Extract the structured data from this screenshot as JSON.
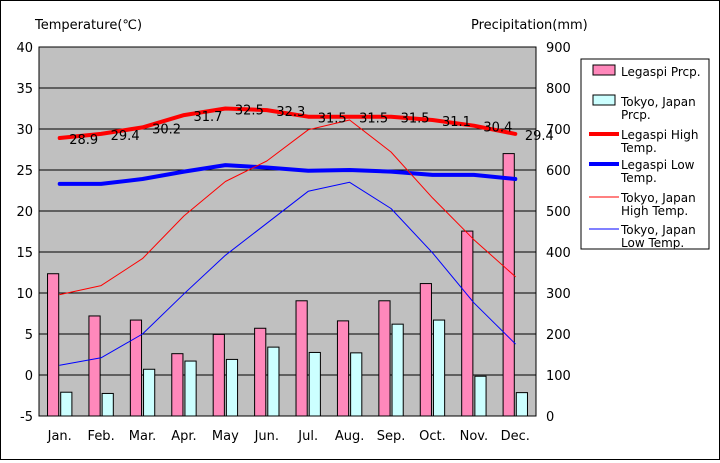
{
  "chart_data": {
    "type": "bar+line",
    "title_left": "Temperature(℃)",
    "title_right": "Precipitation(mm)",
    "categories": [
      "Jan.",
      "Feb.",
      "Mar.",
      "Apr.",
      "May",
      "Jun.",
      "Jul.",
      "Aug.",
      "Sep.",
      "Oct.",
      "Nov.",
      "Dec."
    ],
    "y_left": {
      "min": -5,
      "max": 40,
      "ticks": [
        "-5",
        "0",
        "5",
        "10",
        "15",
        "20",
        "25",
        "30",
        "35",
        "40"
      ]
    },
    "y_right": {
      "min": 0,
      "max": 900,
      "ticks": [
        "0",
        "100",
        "200",
        "300",
        "400",
        "500",
        "600",
        "700",
        "800",
        "900"
      ]
    },
    "grid": true,
    "legend_position": "right",
    "bars": [
      {
        "name": "Legaspi Prcp.",
        "color": "#ff88bb",
        "axis": "right",
        "values": [
          347,
          244,
          234,
          152,
          199,
          214,
          281,
          232,
          281,
          323,
          451,
          640
        ]
      },
      {
        "name": "Tokyo, Japan Prcp.",
        "color": "#ccffff",
        "axis": "right",
        "values": [
          58,
          55,
          114,
          134,
          138,
          168,
          155,
          154,
          224,
          234,
          97,
          57
        ]
      }
    ],
    "lines": [
      {
        "name": "Legaspi High Temp.",
        "color": "#ff0000",
        "width": 4,
        "axis": "left",
        "values": [
          28.9,
          29.4,
          30.2,
          31.7,
          32.5,
          32.3,
          31.5,
          31.5,
          31.5,
          31.1,
          30.4,
          29.4
        ],
        "data_labels": [
          "28.9",
          "29.4",
          "30.2",
          "31.7",
          "32.5",
          "32.3",
          "31.5",
          "31.5",
          "31.5",
          "31.1",
          "30.4",
          "29.4"
        ]
      },
      {
        "name": "Legaspi Low Temp.",
        "color": "#0000ff",
        "width": 4,
        "axis": "left",
        "values": [
          23.3,
          23.3,
          23.9,
          24.8,
          25.6,
          25.3,
          24.9,
          25.0,
          24.8,
          24.4,
          24.4,
          23.9
        ]
      },
      {
        "name": "Tokyo, Japan High Temp.",
        "color": "#ff0000",
        "width": 1,
        "axis": "left",
        "values": [
          9.8,
          10.9,
          14.2,
          19.4,
          23.6,
          26.1,
          29.9,
          31.1,
          27.2,
          21.6,
          16.5,
          12.0
        ]
      },
      {
        "name": "Tokyo, Japan Low Temp.",
        "color": "#0000ff",
        "width": 1,
        "axis": "left",
        "values": [
          1.2,
          2.1,
          5.0,
          9.9,
          14.6,
          18.5,
          22.4,
          23.5,
          20.3,
          14.9,
          8.8,
          3.8
        ]
      }
    ],
    "legend": [
      {
        "label_lines": [
          "Legaspi Prcp."
        ],
        "kind": "bar",
        "color": "#ff88bb"
      },
      {
        "label_lines": [
          "Tokyo, Japan",
          "Prcp."
        ],
        "kind": "bar",
        "color": "#ccffff"
      },
      {
        "label_lines": [
          "Legaspi High",
          "Temp."
        ],
        "kind": "line",
        "color": "#ff0000",
        "width": 4
      },
      {
        "label_lines": [
          "Legaspi Low",
          "Temp."
        ],
        "kind": "line",
        "color": "#0000ff",
        "width": 4
      },
      {
        "label_lines": [
          "Tokyo, Japan",
          "High Temp."
        ],
        "kind": "line",
        "color": "#ff0000",
        "width": 1
      },
      {
        "label_lines": [
          "Tokyo, Japan",
          "Low Temp."
        ],
        "kind": "line",
        "color": "#0000ff",
        "width": 1
      }
    ]
  }
}
